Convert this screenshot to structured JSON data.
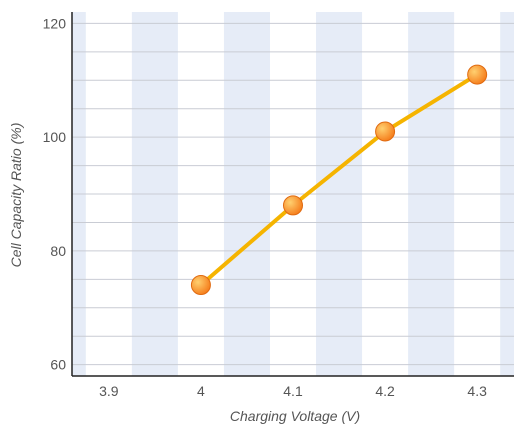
{
  "chart_data": {
    "type": "line",
    "title": "",
    "xlabel": "Charging Voltage (V)",
    "ylabel": "Cell Capacity Ratio (%)",
    "x_ticks": [
      "3.9",
      "4",
      "4.1",
      "4.2",
      "4.3"
    ],
    "y_ticks": [
      "60",
      "80",
      "100",
      "120"
    ],
    "xlim": [
      3.86,
      4.34
    ],
    "ylim": [
      58,
      122
    ],
    "grid": true,
    "legend": "none",
    "series": [
      {
        "x": [
          4.0,
          4.1,
          4.2,
          4.3
        ],
        "y": [
          74,
          88,
          101,
          111
        ]
      }
    ]
  },
  "colors": {
    "line": "#f5b400",
    "marker_fill": "#f57c1a",
    "marker_highlight": "#ffd070",
    "band": "#e6ecf7",
    "grid": "#c9ccd4",
    "axis": "#222222",
    "text": "#555555"
  }
}
